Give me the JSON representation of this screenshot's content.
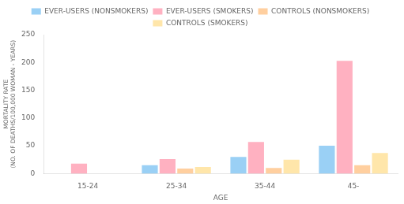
{
  "chart_data": {
    "type": "bar",
    "categories": [
      "15-24",
      "25-34",
      "35-44",
      "45-"
    ],
    "series": [
      {
        "name": "EVER-USERS (NONSMOKERS)",
        "values": [
          0,
          15,
          30,
          50
        ]
      },
      {
        "name": "EVER-USERS (SMOKERS)",
        "values": [
          18,
          26,
          57,
          203
        ]
      },
      {
        "name": "CONTROLS (NONSMOKERS)",
        "values": [
          0,
          9,
          10,
          15
        ]
      },
      {
        "name": "CONTROLS (SMOKERS)",
        "values": [
          0,
          12,
          25,
          37
        ]
      }
    ],
    "xlabel": "AGE",
    "ylabel": "MORTALITY RATE\n(NO. OF DEATHS/100,000 WOMAN - YEARS)",
    "ylim": [
      0,
      250
    ],
    "yticks": [
      0,
      50,
      100,
      150,
      200,
      250
    ],
    "grid": false,
    "legend": "top"
  }
}
